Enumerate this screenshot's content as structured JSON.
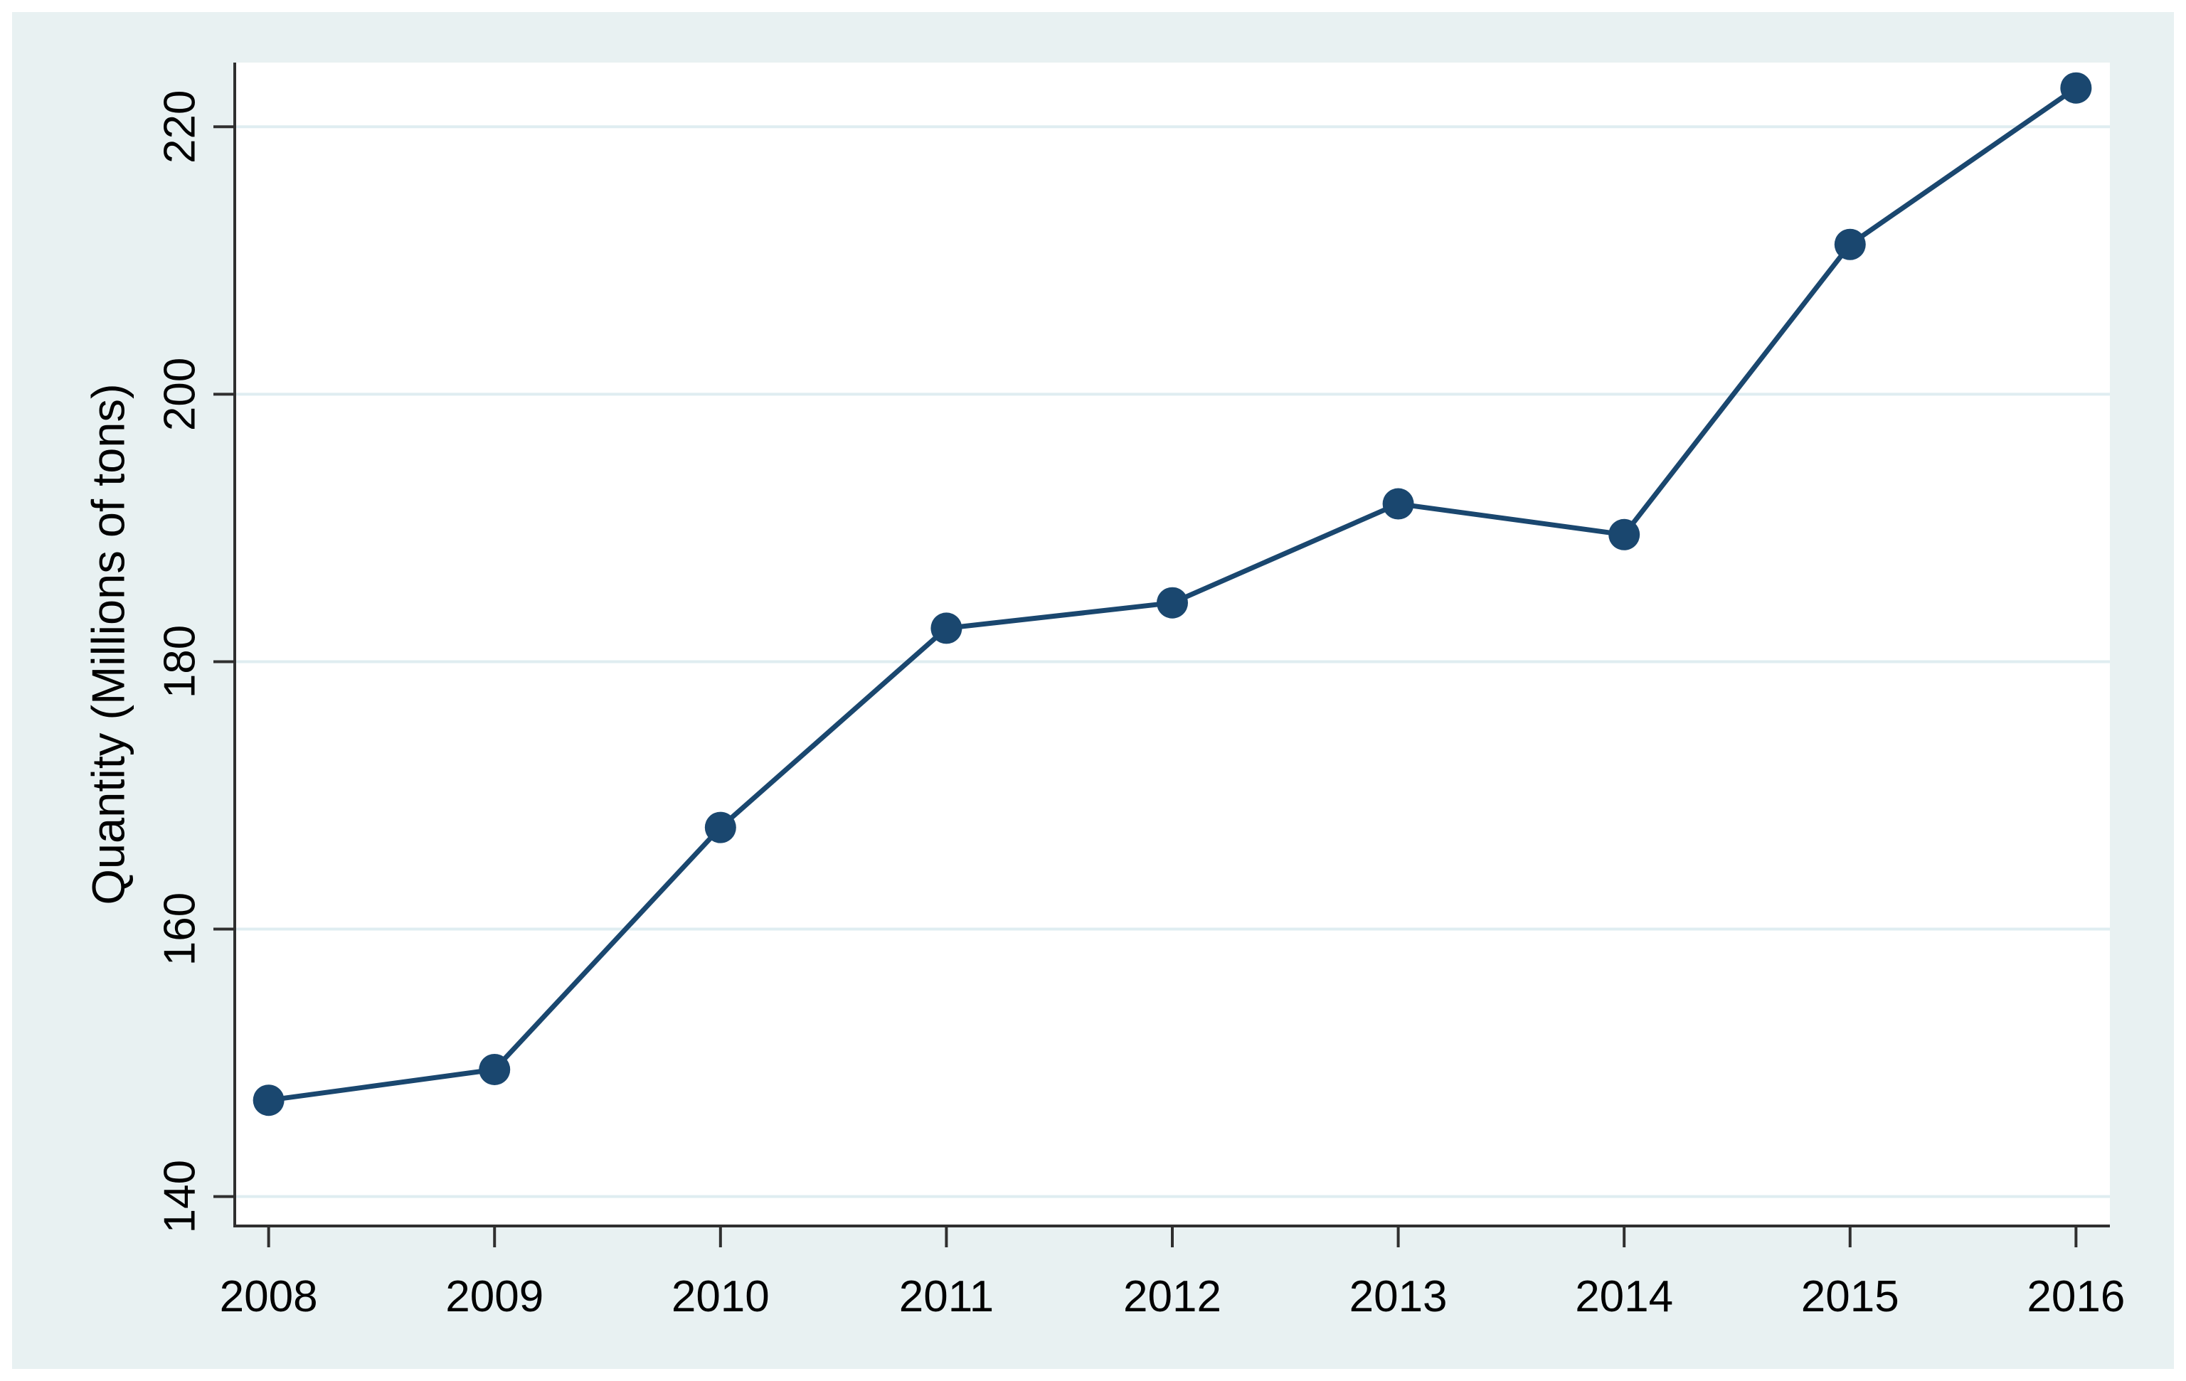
{
  "chart_data": {
    "type": "line",
    "title": "",
    "x": [
      2008,
      2009,
      2010,
      2011,
      2012,
      2013,
      2014,
      2015,
      2016
    ],
    "series": [
      {
        "name": "Quantity",
        "values": [
          147.2,
          149.5,
          167.6,
          182.5,
          184.4,
          191.8,
          189.5,
          211.2,
          222.9
        ]
      }
    ],
    "xlabel": "",
    "ylabel": "Quantity (Millions of tons)",
    "xticks": [
      2008,
      2009,
      2010,
      2011,
      2012,
      2013,
      2014,
      2015,
      2016
    ],
    "yticks": [
      140,
      160,
      180,
      200,
      220
    ],
    "xlim": [
      2007.85,
      2016.15
    ],
    "ylim": [
      137.8,
      224.8
    ],
    "grid": "horizontal",
    "legend": "none",
    "marker": "circle",
    "ytick_label_angle": 90
  },
  "colors": {
    "series": "#1a476f",
    "panel_background": "#e8f1f2",
    "plot_background": "#ffffff",
    "gridline": "#dfedf1",
    "axis": "#2f2f2f",
    "text": "#000000",
    "page_background": "#ffffff"
  }
}
